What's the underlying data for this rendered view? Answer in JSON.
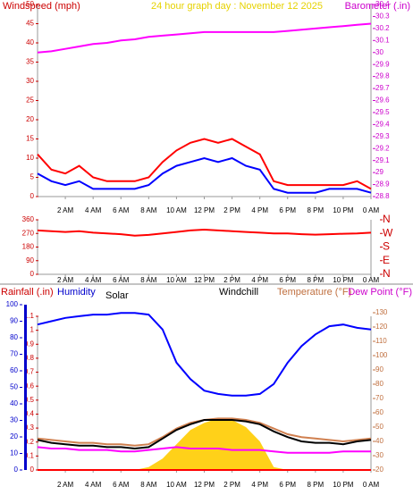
{
  "chart_data": [
    {
      "type": "line",
      "title": "24 hour graph day : November 12 2025",
      "y_label": "Windspeed (mph)",
      "y2_label": "Barometer (.in)",
      "x": [
        0,
        1,
        2,
        3,
        4,
        5,
        6,
        7,
        8,
        9,
        10,
        11,
        12,
        13,
        14,
        15,
        16,
        17,
        18,
        19,
        20,
        21,
        22,
        23,
        24
      ],
      "xlim": [
        0,
        24
      ],
      "xticks": [
        {
          "value": 2,
          "label": "2 AM"
        },
        {
          "value": 4,
          "label": "4 AM"
        },
        {
          "value": 6,
          "label": "6 AM"
        },
        {
          "value": 8,
          "label": "8 AM"
        },
        {
          "value": 10,
          "label": "10 AM"
        },
        {
          "value": 12,
          "label": "12 PM"
        },
        {
          "value": 14,
          "label": "2 PM"
        },
        {
          "value": 16,
          "label": "4 PM"
        },
        {
          "value": 18,
          "label": "6 PM"
        },
        {
          "value": 20,
          "label": "8 PM"
        },
        {
          "value": 22,
          "label": "10 PM"
        },
        {
          "value": 24,
          "label": "0 AM"
        }
      ],
      "ylim": [
        0,
        50
      ],
      "yticks": [
        0,
        5,
        10,
        15,
        20,
        25,
        30,
        35,
        40,
        45,
        50
      ],
      "y2lim": [
        28.8,
        30.4
      ],
      "y2ticks": [
        28.8,
        28.9,
        29,
        29.1,
        29.2,
        29.3,
        29.4,
        29.5,
        29.6,
        29.7,
        29.8,
        29.9,
        30,
        30.1,
        30.2,
        30.3,
        30.4
      ],
      "series": [
        {
          "color": "#ff0000",
          "values": [
            11,
            7,
            6,
            8,
            5,
            4,
            4,
            4,
            5,
            9,
            12,
            14,
            15,
            14,
            15,
            13,
            11,
            4,
            3,
            3,
            3,
            3,
            3,
            4,
            2
          ]
        },
        {
          "color": "#0000ff",
          "values": [
            6,
            4,
            3,
            4,
            2,
            2,
            2,
            2,
            3,
            6,
            8,
            9,
            10,
            9,
            10,
            8,
            7,
            2,
            1,
            1,
            1,
            2,
            2,
            2,
            1
          ]
        },
        {
          "color": "#ff00ff",
          "axis": "y2",
          "values": [
            30,
            30.01,
            30.03,
            30.05,
            30.07,
            30.08,
            30.1,
            30.11,
            30.13,
            30.14,
            30.15,
            30.16,
            30.17,
            30.17,
            30.17,
            30.17,
            30.17,
            30.17,
            30.18,
            30.19,
            30.2,
            30.21,
            30.22,
            30.23,
            30.24
          ]
        }
      ]
    },
    {
      "type": "line",
      "x": [
        0,
        1,
        2,
        3,
        4,
        5,
        6,
        7,
        8,
        9,
        10,
        11,
        12,
        13,
        14,
        15,
        16,
        17,
        18,
        19,
        20,
        21,
        22,
        23,
        24
      ],
      "xlim": [
        0,
        24
      ],
      "xticks": [
        {
          "value": 2,
          "label": "2 AM"
        },
        {
          "value": 4,
          "label": "4 AM"
        },
        {
          "value": 6,
          "label": "6 AM"
        },
        {
          "value": 8,
          "label": "8 AM"
        },
        {
          "value": 10,
          "label": "10 AM"
        },
        {
          "value": 12,
          "label": "12 PM"
        },
        {
          "value": 14,
          "label": "2 PM"
        },
        {
          "value": 16,
          "label": "4 PM"
        },
        {
          "value": 18,
          "label": "6 PM"
        },
        {
          "value": 20,
          "label": "8 PM"
        },
        {
          "value": 22,
          "label": "10 PM"
        },
        {
          "value": 24,
          "label": "0 AM"
        }
      ],
      "ylim": [
        0,
        360
      ],
      "yticks": [
        0,
        90,
        180,
        270,
        360
      ],
      "y2lim": [
        0,
        360
      ],
      "y2ticks": [
        {
          "value": 360,
          "label": "N"
        },
        {
          "value": 270,
          "label": "W"
        },
        {
          "value": 180,
          "label": "S"
        },
        {
          "value": 90,
          "label": "E"
        },
        {
          "value": 0,
          "label": "N"
        }
      ],
      "series": [
        {
          "color": "#ff0000",
          "values": [
            290,
            285,
            280,
            285,
            275,
            270,
            265,
            255,
            260,
            270,
            280,
            290,
            295,
            290,
            285,
            280,
            275,
            270,
            270,
            265,
            262,
            265,
            268,
            270,
            275
          ]
        }
      ]
    },
    {
      "type": "line",
      "y_label": "Rainfall (.in)",
      "y3_label": "Humidity",
      "solar_label": "Solar",
      "windchill_label": "Windchill",
      "y2_label": "Temperature (°F)",
      "dewpoint_label": "Dew Point (°F)",
      "x": [
        0,
        1,
        2,
        3,
        4,
        5,
        6,
        7,
        8,
        9,
        10,
        11,
        12,
        13,
        14,
        15,
        16,
        17,
        18,
        19,
        20,
        21,
        22,
        23,
        24
      ],
      "xlim": [
        0,
        24
      ],
      "xticks": [
        {
          "value": 2,
          "label": "2 AM"
        },
        {
          "value": 4,
          "label": "4 AM"
        },
        {
          "value": 6,
          "label": "6 AM"
        },
        {
          "value": 8,
          "label": "8 AM"
        },
        {
          "value": 10,
          "label": "10 AM"
        },
        {
          "value": 12,
          "label": "12 PM"
        },
        {
          "value": 14,
          "label": "2 PM"
        },
        {
          "value": 16,
          "label": "4 PM"
        },
        {
          "value": 18,
          "label": "6 PM"
        },
        {
          "value": 20,
          "label": "8 PM"
        },
        {
          "value": 22,
          "label": "10 PM"
        },
        {
          "value": 24,
          "label": "0 AM"
        }
      ],
      "ylim": [
        0,
        1.1
      ],
      "yticks": [
        0,
        0.1,
        0.2,
        0.3,
        0.4,
        0.5,
        0.6,
        0.7,
        0.8,
        0.9,
        1,
        1.1
      ],
      "y3lim": [
        0,
        100
      ],
      "y3ticks": [
        0,
        10,
        20,
        30,
        40,
        50,
        60,
        70,
        80,
        90,
        100
      ],
      "y2lim": [
        20,
        130
      ],
      "y2ticks": [
        20,
        30,
        40,
        50,
        60,
        70,
        80,
        90,
        100,
        110,
        120,
        130
      ],
      "series": [
        {
          "kind": "area",
          "color": "#ffcc00",
          "axis": "y2",
          "values": [
            20,
            20,
            20,
            20,
            20,
            20,
            20,
            20,
            22,
            28,
            38,
            48,
            53,
            56,
            55,
            50,
            40,
            22,
            20,
            20,
            20,
            20,
            20,
            20,
            20
          ]
        },
        {
          "color": "#ff0000",
          "values": [
            0,
            0,
            0,
            0,
            0,
            0,
            0,
            0,
            0,
            0,
            0,
            0,
            0,
            0,
            0,
            0,
            0,
            0,
            0,
            0,
            0,
            0,
            0,
            0,
            0
          ]
        },
        {
          "color": "#0000ff",
          "axis": "y3",
          "values": [
            88,
            90,
            92,
            93,
            94,
            94,
            95,
            95,
            94,
            85,
            65,
            55,
            48,
            46,
            45,
            45,
            46,
            52,
            65,
            75,
            82,
            87,
            88,
            86,
            85
          ]
        },
        {
          "color": "#ff00ff",
          "axis": "y2",
          "values": [
            36,
            35,
            35,
            34,
            34,
            34,
            33,
            33,
            34,
            35,
            36,
            35,
            35,
            35,
            34,
            34,
            34,
            33,
            32,
            32,
            32,
            32,
            33,
            33,
            33
          ]
        },
        {
          "color": "#d08050",
          "axis": "y2",
          "values": [
            42,
            41,
            40,
            39,
            39,
            38,
            38,
            37,
            38,
            43,
            49,
            53,
            55,
            56,
            56,
            55,
            53,
            49,
            45,
            43,
            42,
            41,
            40,
            41,
            42
          ]
        },
        {
          "color": "#000000",
          "axis": "y2",
          "values": [
            41,
            39,
            38,
            37,
            37,
            36,
            36,
            35,
            36,
            42,
            48,
            52,
            55,
            55,
            55,
            54,
            52,
            47,
            43,
            40,
            39,
            39,
            38,
            40,
            41
          ]
        }
      ]
    }
  ]
}
